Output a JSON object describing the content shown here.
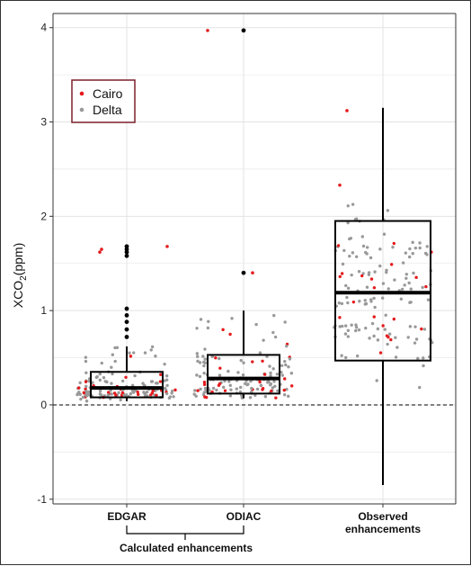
{
  "chart_data": {
    "type": "box",
    "ylabel_main": "XCO",
    "ylabel_sub": "2",
    "ylabel_unit": "(ppm)",
    "ylim": [
      -1.05,
      4.15
    ],
    "yticks": [
      "-1",
      "0",
      "1",
      "2",
      "3",
      "4"
    ],
    "grid": true,
    "reference_line": 0,
    "legend": {
      "placement": "top-left",
      "entries": [
        {
          "name": "Cairo",
          "color": "#e41a1c"
        },
        {
          "name": "Delta",
          "color": "#999999"
        }
      ]
    },
    "categories": [
      {
        "label": "EDGAR",
        "q1": 0.08,
        "median": 0.18,
        "q3": 0.35,
        "whisker_low": 0.04,
        "whisker_high": 0.62,
        "outliers": [
          0.72,
          0.8,
          0.88,
          0.95,
          1.02,
          1.58,
          1.62,
          1.65,
          1.68
        ]
      },
      {
        "label": "ODIAC",
        "q1": 0.12,
        "median": 0.28,
        "q3": 0.53,
        "whisker_low": 0.07,
        "whisker_high": 1.0,
        "outliers": [
          1.4,
          3.97
        ]
      },
      {
        "label": "Observed\nenhancements",
        "q1": 0.47,
        "median": 1.19,
        "q3": 1.95,
        "whisker_low": -0.85,
        "whisker_high": 3.15,
        "outliers": []
      }
    ],
    "group_label": "Calculated enhancements",
    "colors": {
      "cairo": "#e41a1c",
      "delta": "#999999",
      "box": "#000000",
      "grid": "#e3e3e3"
    }
  }
}
